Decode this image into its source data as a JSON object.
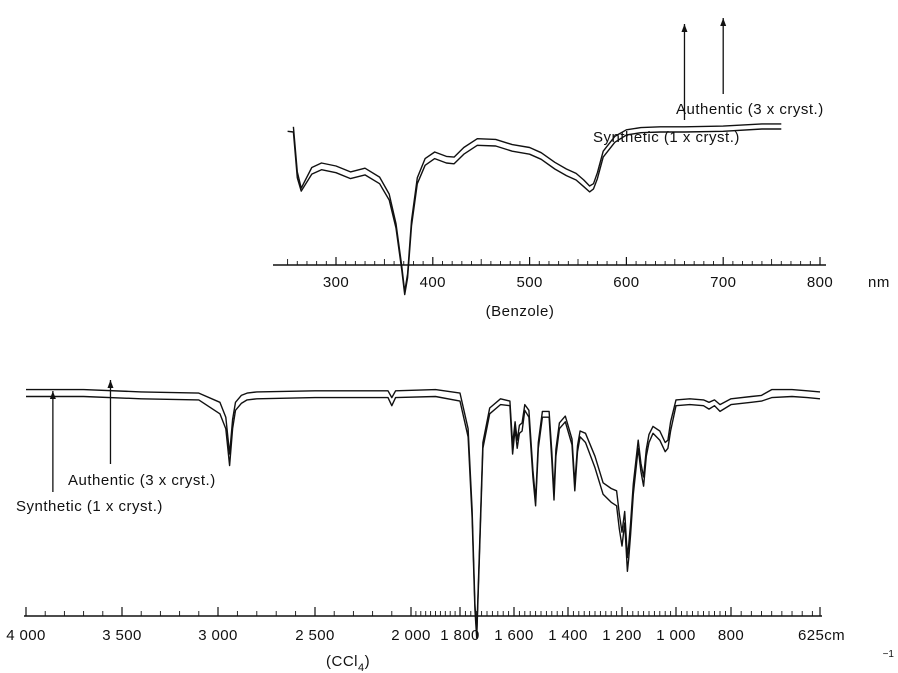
{
  "chart_data": [
    {
      "type": "line",
      "title": "",
      "xlabel": "(Benzole)",
      "ylabel": "",
      "x_unit": "nm",
      "xlim": [
        250,
        850
      ],
      "x_ticks": [
        300,
        400,
        500,
        600,
        700,
        800
      ],
      "x_tick_labels": [
        "300",
        "400",
        "500",
        "600",
        "700",
        "800"
      ],
      "grid": false,
      "series": [
        {
          "name": "Synthetic (1 x cryst.)",
          "x": [
            250,
            256,
            260,
            264,
            275,
            285,
            300,
            315,
            330,
            345,
            355,
            362,
            368,
            371,
            374,
            378,
            384,
            392,
            402,
            414,
            422,
            432,
            446,
            465,
            482,
            500,
            512,
            526,
            538,
            548,
            556,
            562,
            566,
            570,
            576,
            588,
            600,
            615,
            635,
            660,
            700,
            740,
            760
          ],
          "y": [
            0.93,
            0.92,
            0.3,
            0.12,
            0.35,
            0.41,
            0.37,
            0.29,
            0.34,
            0.22,
            0.0,
            -0.38,
            -0.95,
            -1.28,
            -1.05,
            -0.35,
            0.22,
            0.47,
            0.56,
            0.5,
            0.49,
            0.62,
            0.74,
            0.73,
            0.66,
            0.62,
            0.55,
            0.42,
            0.33,
            0.27,
            0.18,
            0.11,
            0.15,
            0.29,
            0.58,
            0.78,
            0.88,
            0.91,
            0.92,
            0.92,
            0.93,
            0.96,
            0.96
          ]
        },
        {
          "name": "Authentic (3 x cryst.)",
          "x": [
            256,
            260,
            264,
            275,
            285,
            300,
            315,
            330,
            345,
            355,
            362,
            368,
            371,
            374,
            378,
            384,
            392,
            402,
            414,
            422,
            432,
            446,
            465,
            482,
            500,
            512,
            526,
            538,
            548,
            556,
            562,
            566,
            570,
            576,
            588,
            600,
            615,
            635,
            660,
            700,
            740,
            760
          ],
          "y": [
            0.99,
            0.38,
            0.16,
            0.44,
            0.5,
            0.46,
            0.38,
            0.43,
            0.31,
            0.08,
            -0.32,
            -0.9,
            -1.24,
            -1.0,
            -0.28,
            0.3,
            0.56,
            0.65,
            0.59,
            0.58,
            0.71,
            0.83,
            0.82,
            0.75,
            0.71,
            0.64,
            0.51,
            0.42,
            0.36,
            0.27,
            0.19,
            0.22,
            0.37,
            0.66,
            0.86,
            0.95,
            0.98,
            0.99,
            0.99,
            1.0,
            1.03,
            1.03
          ]
        }
      ],
      "annotations": [
        {
          "text": "Authentic (3 x cryst.)",
          "x": 700
        },
        {
          "text": "Synthetic (1 x cryst.)",
          "x": 660
        }
      ]
    },
    {
      "type": "line",
      "title": "",
      "xlabel": "(CCl4)",
      "ylabel": "",
      "x_unit": "625cm⁻¹",
      "xlim": [
        4000,
        625
      ],
      "x_ticks": [
        4000,
        3500,
        3000,
        2500,
        2000,
        1800,
        1600,
        1400,
        1200,
        1000,
        800,
        625
      ],
      "x_tick_labels": [
        "4 000",
        "3 500",
        "3 000",
        "2 500",
        "2 000",
        "1 800",
        "1 600",
        "1 400",
        "1 200",
        "1 000",
        "800",
        "625cm"
      ],
      "grid": false,
      "series": [
        {
          "name": "Synthetic (1 x cryst.)",
          "x": [
            4000,
            3700,
            3400,
            3100,
            2990,
            2960,
            2940,
            2925,
            2910,
            2880,
            2850,
            2800,
            2500,
            2200,
            2120,
            2100,
            2080,
            1900,
            1800,
            1770,
            1755,
            1745,
            1738,
            1728,
            1715,
            1690,
            1650,
            1615,
            1605,
            1596,
            1588,
            1580,
            1570,
            1560,
            1545,
            1530,
            1520,
            1510,
            1495,
            1470,
            1460,
            1452,
            1445,
            1432,
            1410,
            1385,
            1375,
            1365,
            1355,
            1335,
            1300,
            1270,
            1240,
            1220,
            1210,
            1200,
            1190,
            1180,
            1175,
            1168,
            1158,
            1140,
            1130,
            1120,
            1110,
            1100,
            1085,
            1060,
            1040,
            1030,
            1020,
            1000,
            950,
            900,
            880,
            860,
            840,
            800,
            760,
            740,
            720,
            680,
            650,
            625
          ],
          "y": [
            0.9,
            0.9,
            0.88,
            0.87,
            0.75,
            0.62,
            0.3,
            0.62,
            0.78,
            0.84,
            0.87,
            0.88,
            0.89,
            0.89,
            0.89,
            0.82,
            0.89,
            0.9,
            0.86,
            0.55,
            -0.15,
            -0.95,
            -1.2,
            -0.5,
            0.45,
            0.75,
            0.83,
            0.82,
            0.4,
            0.62,
            0.45,
            0.58,
            0.6,
            0.78,
            0.72,
            0.2,
            -0.05,
            0.45,
            0.72,
            0.72,
            0.35,
            0.0,
            0.38,
            0.62,
            0.68,
            0.48,
            0.08,
            0.42,
            0.55,
            0.5,
            0.28,
            0.05,
            -0.02,
            -0.05,
            -0.25,
            -0.4,
            -0.2,
            -0.62,
            -0.5,
            -0.3,
            0.05,
            0.45,
            0.25,
            0.12,
            0.38,
            0.5,
            0.58,
            0.52,
            0.42,
            0.45,
            0.6,
            0.82,
            0.83,
            0.82,
            0.79,
            0.82,
            0.77,
            0.83,
            0.85,
            0.86,
            0.89,
            0.9,
            0.89,
            0.88
          ]
        },
        {
          "name": "Authentic (3 x cryst.)",
          "x": [
            4000,
            3700,
            3400,
            3100,
            2990,
            2960,
            2940,
            2925,
            2910,
            2880,
            2850,
            2800,
            2500,
            2200,
            2120,
            2100,
            2080,
            1900,
            1800,
            1770,
            1755,
            1745,
            1738,
            1728,
            1715,
            1690,
            1650,
            1615,
            1605,
            1596,
            1588,
            1580,
            1570,
            1560,
            1545,
            1530,
            1520,
            1510,
            1495,
            1470,
            1460,
            1452,
            1445,
            1432,
            1410,
            1385,
            1375,
            1365,
            1355,
            1335,
            1300,
            1270,
            1240,
            1220,
            1210,
            1200,
            1190,
            1180,
            1175,
            1168,
            1158,
            1140,
            1130,
            1120,
            1110,
            1100,
            1085,
            1060,
            1040,
            1030,
            1020,
            1000,
            950,
            900,
            880,
            860,
            840,
            800,
            760,
            740,
            720,
            680,
            650,
            625
          ],
          "y": [
            0.96,
            0.96,
            0.94,
            0.93,
            0.85,
            0.72,
            0.4,
            0.7,
            0.85,
            0.91,
            0.93,
            0.94,
            0.95,
            0.95,
            0.95,
            0.89,
            0.95,
            0.96,
            0.93,
            0.62,
            -0.08,
            -0.9,
            -1.16,
            -0.45,
            0.5,
            0.8,
            0.88,
            0.86,
            0.48,
            0.68,
            0.52,
            0.65,
            0.67,
            0.83,
            0.78,
            0.26,
            0.0,
            0.5,
            0.77,
            0.77,
            0.42,
            0.06,
            0.44,
            0.67,
            0.73,
            0.53,
            0.14,
            0.47,
            0.6,
            0.58,
            0.38,
            0.15,
            0.1,
            0.08,
            -0.12,
            -0.28,
            -0.1,
            -0.5,
            -0.38,
            -0.2,
            0.14,
            0.52,
            0.32,
            0.2,
            0.44,
            0.57,
            0.64,
            0.6,
            0.5,
            0.52,
            0.68,
            0.87,
            0.88,
            0.87,
            0.85,
            0.87,
            0.83,
            0.88,
            0.9,
            0.91,
            0.96,
            0.96,
            0.95,
            0.94
          ]
        }
      ],
      "annotations": [
        {
          "text": "Authentic (3 x cryst.)",
          "x": 3560
        },
        {
          "text": "Synthetic (1 x cryst.)",
          "x": 3860
        }
      ]
    }
  ]
}
